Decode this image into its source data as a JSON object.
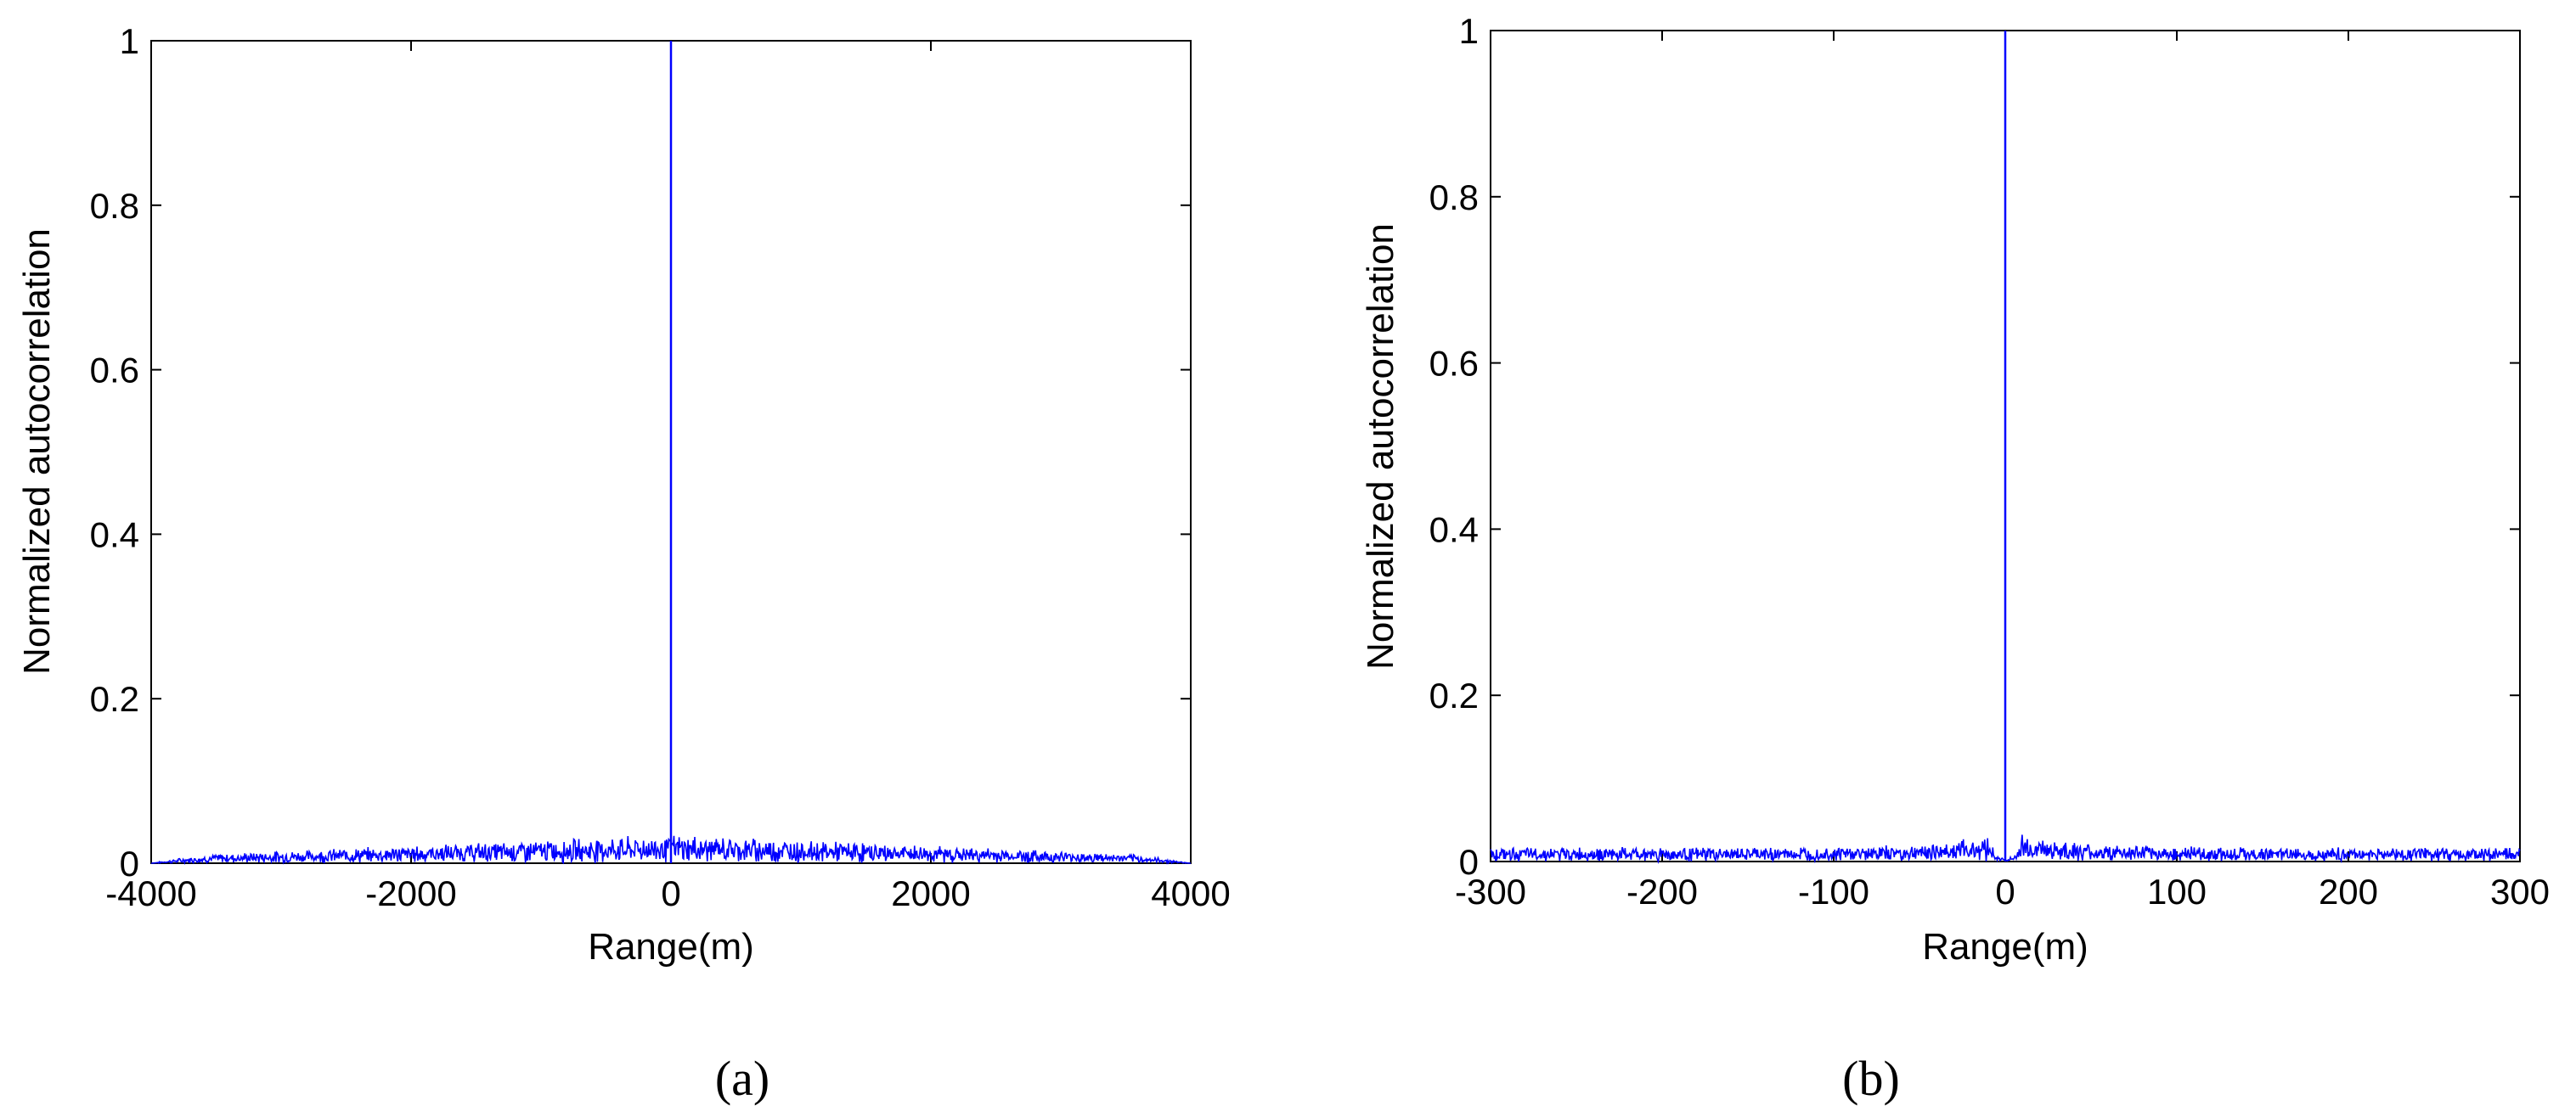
{
  "chart_data": [
    {
      "type": "line",
      "caption": "(a)",
      "xlabel": "Range(m)",
      "ylabel": "Normalized autocorrelation",
      "xlim": [
        -4000,
        4000
      ],
      "ylim": [
        0,
        1
      ],
      "xticks": [
        -4000,
        -2000,
        0,
        2000,
        4000
      ],
      "xtick_labels": [
        "-4000",
        "-2000",
        "0",
        "2000",
        "4000"
      ],
      "yticks": [
        0,
        0.2,
        0.4,
        0.6,
        0.8,
        1
      ],
      "ytick_labels": [
        "0",
        "0.2",
        "0.4",
        "0.6",
        "0.8",
        "1"
      ],
      "grid": false,
      "line_color": "#0000ff",
      "series": [
        {
          "x": [
            -4000,
            -3800,
            -3500,
            -3000,
            -2500,
            -2000,
            -1500,
            -1000,
            -500,
            -100,
            -10,
            0,
            10,
            100,
            500,
            1000,
            1500,
            2000,
            2500,
            3000,
            3500,
            3800,
            4000
          ],
          "y": [
            0,
            0.005,
            0.01,
            0.013,
            0.016,
            0.019,
            0.022,
            0.025,
            0.028,
            0.03,
            0.03,
            1,
            0.03,
            0.03,
            0.028,
            0.025,
            0.022,
            0.019,
            0.016,
            0.013,
            0.01,
            0.005,
            0
          ]
        }
      ]
    },
    {
      "type": "line",
      "caption": "(b)",
      "xlabel": "Range(m)",
      "ylabel": "Normalized autocorrelation",
      "xlim": [
        -300,
        300
      ],
      "ylim": [
        0,
        1
      ],
      "xticks": [
        -300,
        -200,
        -100,
        0,
        100,
        200,
        300
      ],
      "xtick_labels": [
        "-300",
        "-200",
        "-100",
        "0",
        "100",
        "200",
        "300"
      ],
      "yticks": [
        0,
        0.2,
        0.4,
        0.6,
        0.8,
        1
      ],
      "ytick_labels": [
        "0",
        "0.2",
        "0.4",
        "0.6",
        "0.8",
        "1"
      ],
      "grid": false,
      "line_color": "#0000ff",
      "series": [
        {
          "x": [
            -300,
            -250,
            -200,
            -150,
            -100,
            -50,
            -20,
            -10,
            -5,
            -2,
            0,
            2,
            5,
            10,
            20,
            50,
            100,
            150,
            200,
            250,
            300
          ],
          "y": [
            0.015,
            0.015,
            0.015,
            0.015,
            0.016,
            0.018,
            0.025,
            0.03,
            0.005,
            0.005,
            1,
            0.005,
            0.005,
            0.03,
            0.025,
            0.018,
            0.016,
            0.015,
            0.015,
            0.015,
            0.015
          ]
        }
      ]
    }
  ]
}
